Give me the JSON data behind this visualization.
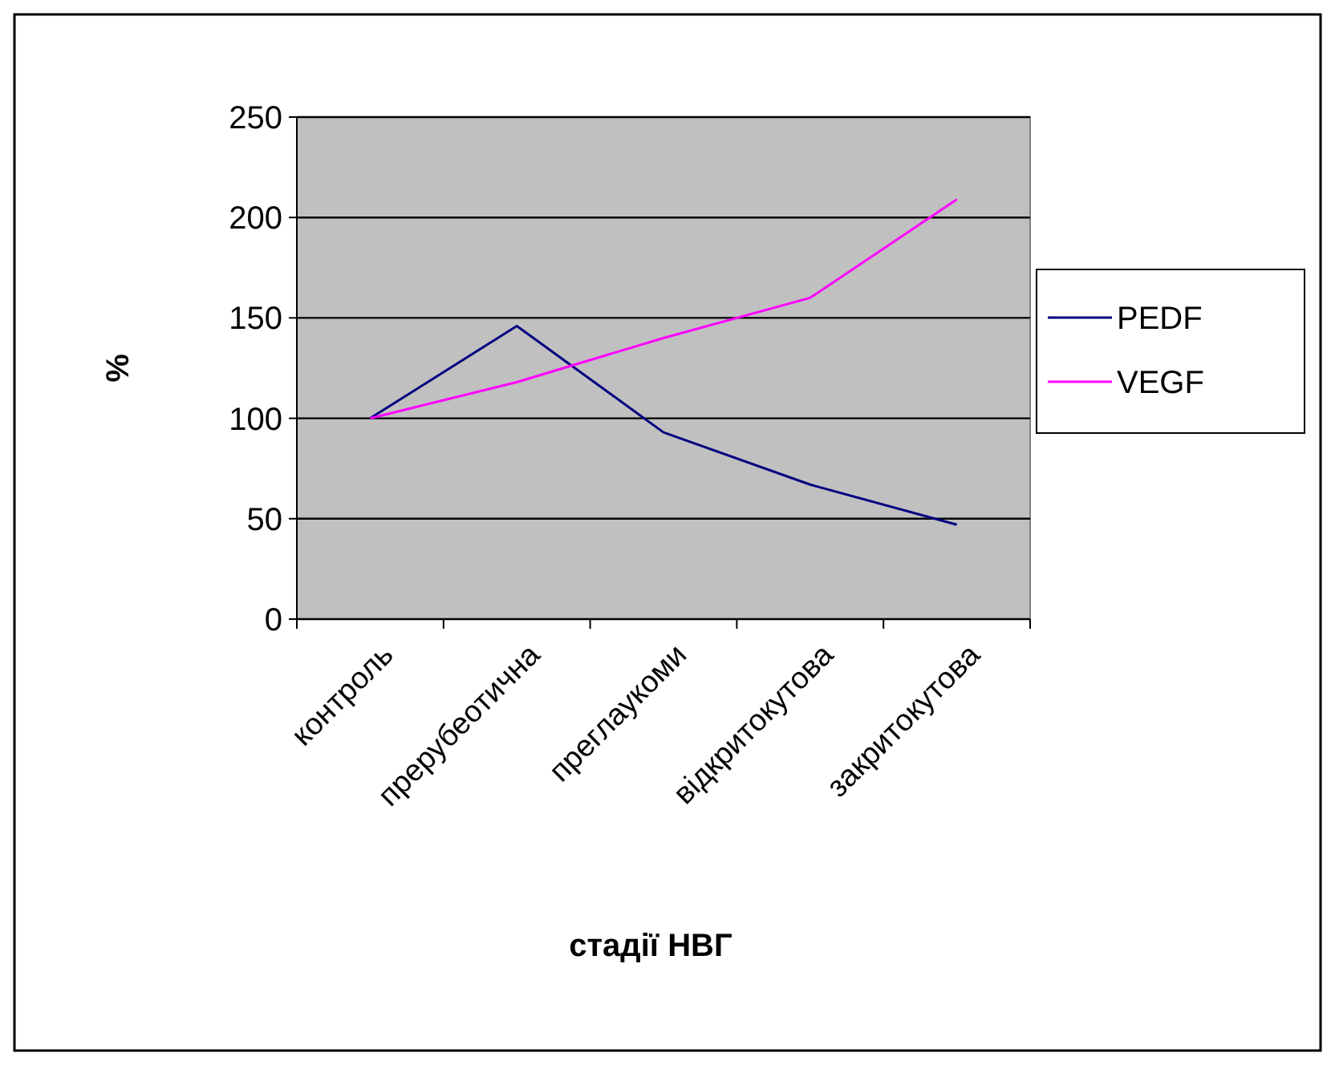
{
  "chart_data": {
    "type": "line",
    "xlabel": "стадії НВГ",
    "ylabel": "%",
    "categories": [
      "контроль",
      "прерубеотична",
      "преглаукоми",
      "відкритокутова",
      "закритокутова"
    ],
    "series": [
      {
        "name": "PEDF",
        "color": "#000080",
        "values": [
          100,
          146,
          93,
          67,
          47
        ]
      },
      {
        "name": "VEGF",
        "color": "#ff00ff",
        "values": [
          100,
          118,
          140,
          160,
          209
        ]
      }
    ],
    "ylim": [
      0,
      250
    ],
    "yticks": [
      0,
      50,
      100,
      150,
      200,
      250
    ],
    "grid": "y",
    "legend": "right",
    "marker": "none",
    "line_style": "solid"
  }
}
